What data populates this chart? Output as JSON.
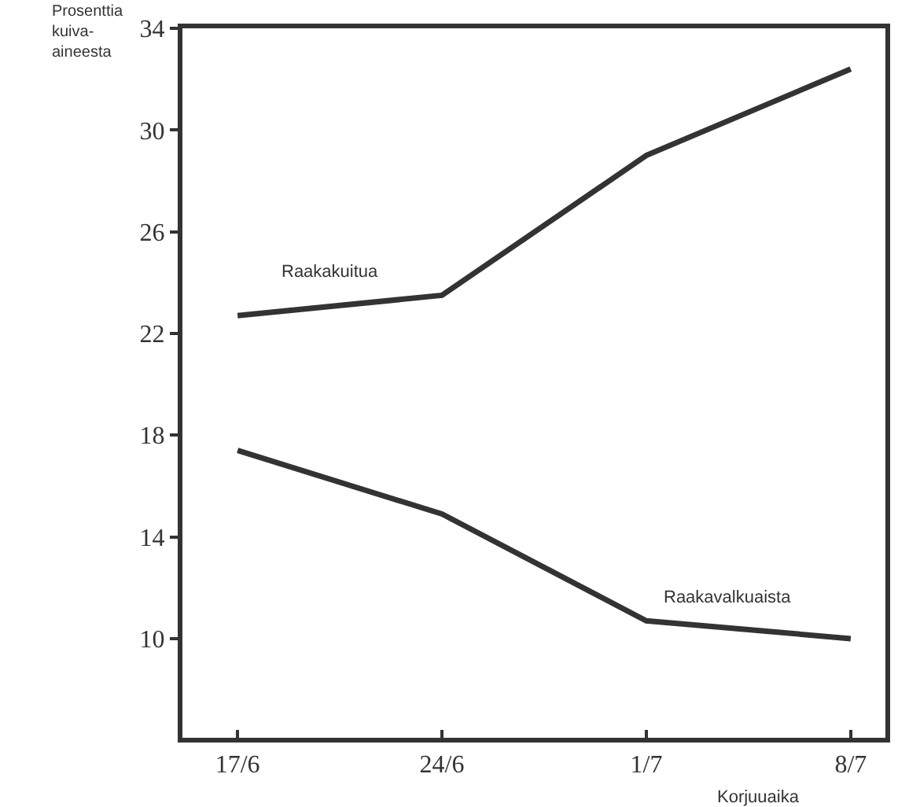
{
  "chart_data": {
    "type": "line",
    "xlabel": "Korjuuaika",
    "ylabel": "Prosenttia kuiva-aineesta",
    "categories": [
      "17/6",
      "24/6",
      "1/7",
      "8/7"
    ],
    "ylim": [
      6.1,
      34
    ],
    "yticks": [
      10,
      14,
      18,
      22,
      26,
      30,
      34
    ],
    "grid": false,
    "legend": false,
    "marker": "none",
    "line_style": "solid",
    "series": [
      {
        "name": "Raakakuitua",
        "color": "#333333",
        "values": [
          22.7,
          23.5,
          29.0,
          32.4
        ]
      },
      {
        "name": "Raakavalkuaista",
        "color": "#333333",
        "values": [
          17.4,
          14.9,
          10.7,
          10.0
        ]
      }
    ]
  }
}
